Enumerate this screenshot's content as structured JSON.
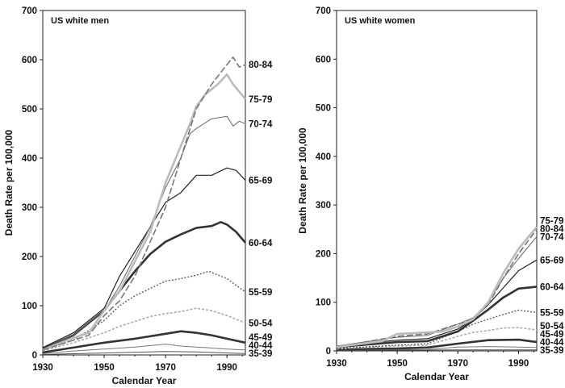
{
  "chart_data": [
    {
      "type": "line",
      "title": "US white men",
      "xlabel": "Calendar Year",
      "ylabel": "Death Rate per 100,000",
      "xlim": [
        1930,
        1996
      ],
      "ylim": [
        0,
        700
      ],
      "xticks": [
        1930,
        1950,
        1970,
        1990
      ],
      "yticks": [
        0,
        100,
        200,
        300,
        400,
        500,
        600,
        700
      ],
      "grid": false,
      "legend": "direct labels at right",
      "series": [
        {
          "name": "80-84",
          "color": "#777777",
          "x": [
            1930,
            1940,
            1945,
            1950,
            1955,
            1960,
            1965,
            1970,
            1975,
            1980,
            1985,
            1990,
            1992,
            1994,
            1996
          ],
          "y": [
            10,
            30,
            40,
            80,
            110,
            160,
            230,
            300,
            400,
            500,
            550,
            590,
            605,
            585,
            590
          ]
        },
        {
          "name": "75-79",
          "color": "#bbbbbb",
          "x": [
            1930,
            1940,
            1945,
            1950,
            1955,
            1960,
            1965,
            1970,
            1975,
            1978,
            1980,
            1983,
            1987,
            1990,
            1992,
            1996
          ],
          "y": [
            10,
            35,
            45,
            90,
            130,
            190,
            250,
            350,
            425,
            470,
            505,
            530,
            550,
            570,
            550,
            520
          ]
        },
        {
          "name": "70-74",
          "color": "#666666",
          "x": [
            1930,
            1940,
            1950,
            1955,
            1960,
            1965,
            1970,
            1975,
            1978,
            1980,
            1985,
            1990,
            1992,
            1994,
            1996
          ],
          "y": [
            12,
            40,
            90,
            140,
            200,
            260,
            340,
            400,
            450,
            460,
            480,
            485,
            465,
            475,
            470
          ]
        },
        {
          "name": "65-69",
          "color": "#222222",
          "x": [
            1930,
            1940,
            1950,
            1955,
            1960,
            1965,
            1970,
            1975,
            1980,
            1985,
            1990,
            1993,
            1996
          ],
          "y": [
            15,
            45,
            95,
            160,
            210,
            260,
            310,
            330,
            365,
            365,
            380,
            375,
            355
          ]
        },
        {
          "name": "60-64",
          "color": "#333333",
          "x": [
            1930,
            1940,
            1950,
            1955,
            1960,
            1965,
            1970,
            1975,
            1980,
            1985,
            1988,
            1990,
            1993,
            1996
          ],
          "y": [
            12,
            40,
            90,
            130,
            170,
            205,
            230,
            245,
            258,
            262,
            270,
            265,
            250,
            228
          ]
        },
        {
          "name": "55-59",
          "color": "#555555",
          "x": [
            1930,
            1940,
            1950,
            1955,
            1960,
            1965,
            1970,
            1975,
            1980,
            1984,
            1990,
            1996
          ],
          "y": [
            10,
            30,
            70,
            100,
            120,
            135,
            150,
            155,
            162,
            170,
            155,
            128
          ]
        },
        {
          "name": "50-54",
          "color": "#aaaaaa",
          "x": [
            1930,
            1940,
            1950,
            1955,
            1960,
            1965,
            1970,
            1975,
            1980,
            1985,
            1990,
            1996
          ],
          "y": [
            8,
            25,
            45,
            58,
            68,
            78,
            84,
            88,
            95,
            90,
            80,
            65
          ]
        },
        {
          "name": "45-49",
          "color": "#333333",
          "x": [
            1930,
            1940,
            1950,
            1960,
            1970,
            1975,
            1980,
            1985,
            1990,
            1996
          ],
          "y": [
            5,
            15,
            25,
            33,
            43,
            48,
            45,
            40,
            33,
            25
          ]
        },
        {
          "name": "40-44",
          "color": "#777777",
          "x": [
            1930,
            1940,
            1950,
            1960,
            1970,
            1975,
            1980,
            1990,
            1996
          ],
          "y": [
            3,
            8,
            12,
            16,
            22,
            18,
            16,
            12,
            10
          ]
        },
        {
          "name": "35-39",
          "color": "#555555",
          "x": [
            1930,
            1950,
            1970,
            1980,
            1990,
            1996
          ],
          "y": [
            1,
            4,
            7,
            6,
            4,
            3
          ]
        }
      ]
    },
    {
      "type": "line",
      "title": "US white women",
      "xlabel": "Calendar Year",
      "ylabel": "Death Rate per 100,000",
      "xlim": [
        1930,
        1996
      ],
      "ylim": [
        0,
        700
      ],
      "xticks": [
        1930,
        1950,
        1970,
        1990
      ],
      "yticks": [
        0,
        100,
        200,
        300,
        400,
        500,
        600,
        700
      ],
      "grid": false,
      "legend": "direct labels at right",
      "series": [
        {
          "name": "75-79",
          "color": "#bbbbbb",
          "x": [
            1930,
            1945,
            1950,
            1960,
            1965,
            1970,
            1975,
            1980,
            1985,
            1990,
            1996
          ],
          "y": [
            8,
            20,
            35,
            38,
            40,
            50,
            65,
            100,
            160,
            210,
            255
          ]
        },
        {
          "name": "80-84",
          "color": "#777777",
          "x": [
            1930,
            1950,
            1960,
            1970,
            1975,
            1980,
            1985,
            1990,
            1996
          ],
          "y": [
            8,
            30,
            35,
            55,
            65,
            95,
            150,
            200,
            250
          ]
        },
        {
          "name": "70-74",
          "color": "#666666",
          "x": [
            1930,
            1950,
            1960,
            1970,
            1975,
            1980,
            1985,
            1990,
            1996
          ],
          "y": [
            10,
            28,
            32,
            55,
            68,
            100,
            150,
            190,
            235
          ]
        },
        {
          "name": "65-69",
          "color": "#222222",
          "x": [
            1930,
            1950,
            1960,
            1970,
            1975,
            1980,
            1985,
            1990,
            1996
          ],
          "y": [
            10,
            22,
            25,
            45,
            65,
            95,
            130,
            165,
            187
          ]
        },
        {
          "name": "60-64",
          "color": "#333333",
          "x": [
            1930,
            1950,
            1960,
            1970,
            1975,
            1980,
            1985,
            1990,
            1996
          ],
          "y": [
            8,
            18,
            20,
            40,
            62,
            85,
            110,
            128,
            132
          ]
        },
        {
          "name": "55-59",
          "color": "#555555",
          "x": [
            1930,
            1950,
            1960,
            1970,
            1975,
            1980,
            1985,
            1990,
            1996
          ],
          "y": [
            5,
            12,
            15,
            40,
            55,
            65,
            75,
            84,
            79
          ]
        },
        {
          "name": "50-54",
          "color": "#aaaaaa",
          "x": [
            1930,
            1950,
            1960,
            1970,
            1975,
            1980,
            1985,
            1990,
            1996
          ],
          "y": [
            4,
            10,
            12,
            30,
            38,
            42,
            47,
            48,
            43
          ]
        },
        {
          "name": "45-49",
          "color": "#333333",
          "x": [
            1930,
            1950,
            1960,
            1970,
            1980,
            1990,
            1996
          ],
          "y": [
            3,
            5,
            7,
            15,
            22,
            23,
            18
          ]
        },
        {
          "name": "40-44",
          "color": "#777777",
          "x": [
            1930,
            1960,
            1970,
            1980,
            1990,
            1996
          ],
          "y": [
            2,
            3,
            8,
            9,
            8,
            7
          ]
        },
        {
          "name": "35-39",
          "color": "#555555",
          "x": [
            1930,
            1970,
            1990,
            1996
          ],
          "y": [
            1,
            2,
            2,
            2
          ]
        }
      ]
    }
  ]
}
